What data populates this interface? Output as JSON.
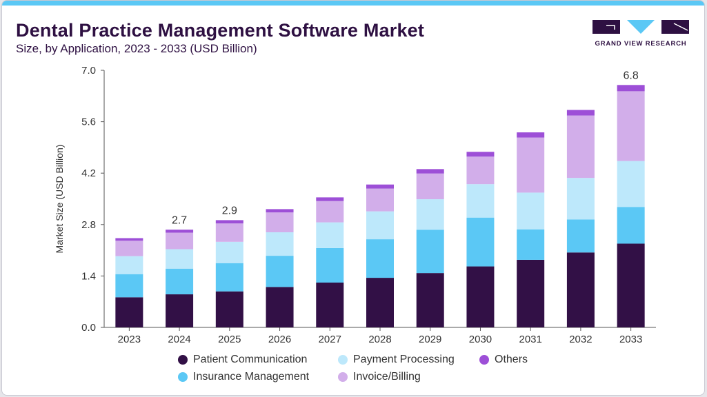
{
  "header": {
    "title": "Dental Practice Management Software Market",
    "subtitle": "Size, by Application, 2023 - 2033 (USD Billion)"
  },
  "brand": {
    "name": "GRAND VIEW RESEARCH",
    "colors": {
      "dark": "#2e1042",
      "light": "#5bc8f5"
    }
  },
  "colors": {
    "Patient Communication": "#321046",
    "Insurance Management": "#5bc8f5",
    "Payment Processing": "#bde8fb",
    "Invoice/Billing": "#d2aeea",
    "Others": "#9d4fd7"
  },
  "chart_data": {
    "type": "bar",
    "stacked": true,
    "title": "Dental Practice Management Software Market",
    "subtitle": "Size, by Application, 2023 - 2033 (USD Billion)",
    "xlabel": "",
    "ylabel": "Market Size (USD Billion)",
    "ylim": [
      0,
      7.0
    ],
    "yticks": [
      "0.0",
      "1.4",
      "2.8",
      "4.2",
      "5.6",
      "7.0"
    ],
    "categories": [
      "2023",
      "2024",
      "2025",
      "2026",
      "2027",
      "2028",
      "2029",
      "2030",
      "2031",
      "2032",
      "2033"
    ],
    "series": [
      {
        "name": "Patient Communication",
        "values": [
          0.82,
          0.9,
          0.98,
          1.1,
          1.22,
          1.35,
          1.48,
          1.66,
          1.84,
          2.04,
          2.28
        ]
      },
      {
        "name": "Insurance Management",
        "values": [
          0.63,
          0.7,
          0.77,
          0.85,
          0.94,
          1.05,
          1.18,
          1.33,
          0.83,
          0.9,
          1.0
        ]
      },
      {
        "name": "Payment Processing",
        "values": [
          0.49,
          0.53,
          0.58,
          0.64,
          0.7,
          0.76,
          0.83,
          0.91,
          1.0,
          1.13,
          1.25
        ]
      },
      {
        "name": "Invoice/Billing",
        "values": [
          0.42,
          0.45,
          0.5,
          0.54,
          0.58,
          0.62,
          0.7,
          0.75,
          1.5,
          1.7,
          1.9
        ]
      },
      {
        "name": "Others",
        "values": [
          0.07,
          0.08,
          0.09,
          0.09,
          0.1,
          0.11,
          0.12,
          0.13,
          0.14,
          0.15,
          0.17
        ]
      }
    ],
    "data_labels": [
      {
        "category": "2024",
        "text": "2.7"
      },
      {
        "category": "2025",
        "text": "2.9"
      },
      {
        "category": "2033",
        "text": "6.8"
      }
    ],
    "legend": {
      "position": "bottom",
      "items": [
        "Patient Communication",
        "Payment Processing",
        "Others",
        "Insurance Management",
        "Invoice/Billing"
      ]
    },
    "grid": false
  }
}
